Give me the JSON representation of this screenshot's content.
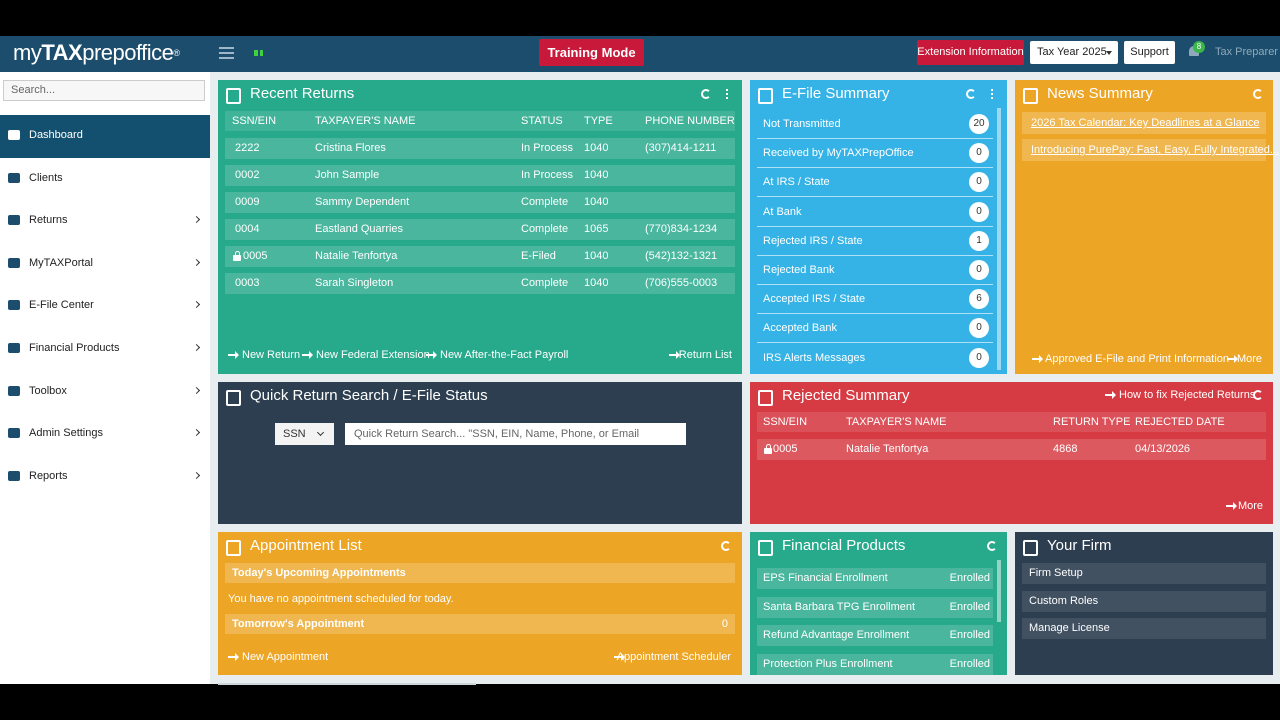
{
  "header": {
    "logo": {
      "my": "my",
      "tax": "TAX",
      "rest": "prepoffice",
      "mark": "®"
    },
    "training_mode": "Training Mode",
    "extension_information": "Extension Information",
    "tax_year": "Tax Year 2025",
    "support": "Support",
    "notification_count": 8,
    "user": "Tax Preparer"
  },
  "sidebar": {
    "search_placeholder": "Search...",
    "items": [
      {
        "label": "Dashboard",
        "active": true
      },
      {
        "label": "Clients"
      },
      {
        "label": "Returns",
        "submenu": true
      },
      {
        "label": "MyTAXPortal",
        "submenu": true
      },
      {
        "label": "E-File Center",
        "submenu": true
      },
      {
        "label": "Financial Products",
        "submenu": true
      },
      {
        "label": "Toolbox",
        "submenu": true
      },
      {
        "label": "Admin Settings",
        "submenu": true
      },
      {
        "label": "Reports",
        "submenu": true
      }
    ]
  },
  "recent_returns": {
    "title": "Recent Returns",
    "columns": [
      "SSN/EIN",
      "TAXPAYER'S NAME",
      "STATUS",
      "TYPE",
      "PHONE NUMBER"
    ],
    "rows": [
      {
        "ssn": "2222",
        "name": "Cristina Flores",
        "status": "In Process",
        "type": "1040",
        "phone": "(307)414-1211"
      },
      {
        "ssn": "0002",
        "name": "John Sample",
        "status": "In Process",
        "type": "1040"
      },
      {
        "ssn": "0009",
        "name": "Sammy Dependent",
        "status": "Complete",
        "type": "1040"
      },
      {
        "ssn": "0004",
        "name": "Eastland Quarries",
        "status": "Complete",
        "type": "1065",
        "phone": "(770)834-1234"
      },
      {
        "ssn": "0005",
        "name": "Natalie Tenfortya",
        "status": "E-Filed",
        "type": "1040",
        "phone": "(542)132-1321",
        "locked": true
      },
      {
        "ssn": "0003",
        "name": "Sarah Singleton",
        "status": "Complete",
        "type": "1040",
        "phone": "(706)555-0003"
      }
    ],
    "links": [
      "New Return",
      "New Federal Extension",
      "New After-the-Fact Payroll"
    ],
    "return_list": "Return List"
  },
  "efile_summary": {
    "title": "E-File Summary",
    "items": [
      {
        "label": "Not Transmitted",
        "count": 20
      },
      {
        "label": "Received by MyTAXPrepOffice",
        "count": 0
      },
      {
        "label": "At IRS / State",
        "count": 0
      },
      {
        "label": "At Bank",
        "count": 0
      },
      {
        "label": "Rejected IRS / State",
        "count": 1
      },
      {
        "label": "Rejected Bank",
        "count": 0
      },
      {
        "label": "Accepted IRS / State",
        "count": 6
      },
      {
        "label": "Accepted Bank",
        "count": 0
      },
      {
        "label": "IRS Alerts Messages",
        "count": 0
      }
    ]
  },
  "news_summary": {
    "title": "News Summary",
    "items": [
      "2026 Tax Calendar: Key Deadlines at a Glance",
      "Introducing PurePay: Fast, Easy, Fully Integrated..."
    ],
    "footer_link": "Approved E-File and Print Information",
    "more": "More"
  },
  "quick_search": {
    "title": "Quick Return Search / E-File Status",
    "search_type": "SSN",
    "placeholder": "Quick Return Search... \"SSN, EIN, Name, Phone, or Email"
  },
  "rejected_summary": {
    "title": "Rejected Summary",
    "help_link": "How to fix Rejected Returns",
    "columns": [
      "SSN/EIN",
      "TAXPAYER'S NAME",
      "RETURN TYPE",
      "REJECTED DATE"
    ],
    "rows": [
      {
        "ssn": "0005",
        "name": "Natalie Tenfortya",
        "return_type": "4868",
        "rejected_date": "04/13/2026",
        "locked": true
      }
    ],
    "more": "More"
  },
  "appointment_list": {
    "title": "Appointment List",
    "today_heading": "Today's Upcoming Appointments",
    "today_message": "You have no appointment scheduled for today.",
    "tomorrow_heading": "Tomorrow's Appointment",
    "tomorrow_count": 0,
    "new_appointment": "New Appointment",
    "scheduler": "Appointment Scheduler"
  },
  "financial_products": {
    "title": "Financial Products",
    "items": [
      {
        "label": "EPS Financial Enrollment",
        "status": "Enrolled"
      },
      {
        "label": "Santa Barbara TPG Enrollment",
        "status": "Enrolled"
      },
      {
        "label": "Refund Advantage Enrollment",
        "status": "Enrolled"
      },
      {
        "label": "Protection Plus Enrollment",
        "status": "Enrolled"
      }
    ]
  },
  "your_firm": {
    "title": "Your Firm",
    "items": [
      "Firm Setup",
      "Custom Roles",
      "Manage License"
    ]
  }
}
